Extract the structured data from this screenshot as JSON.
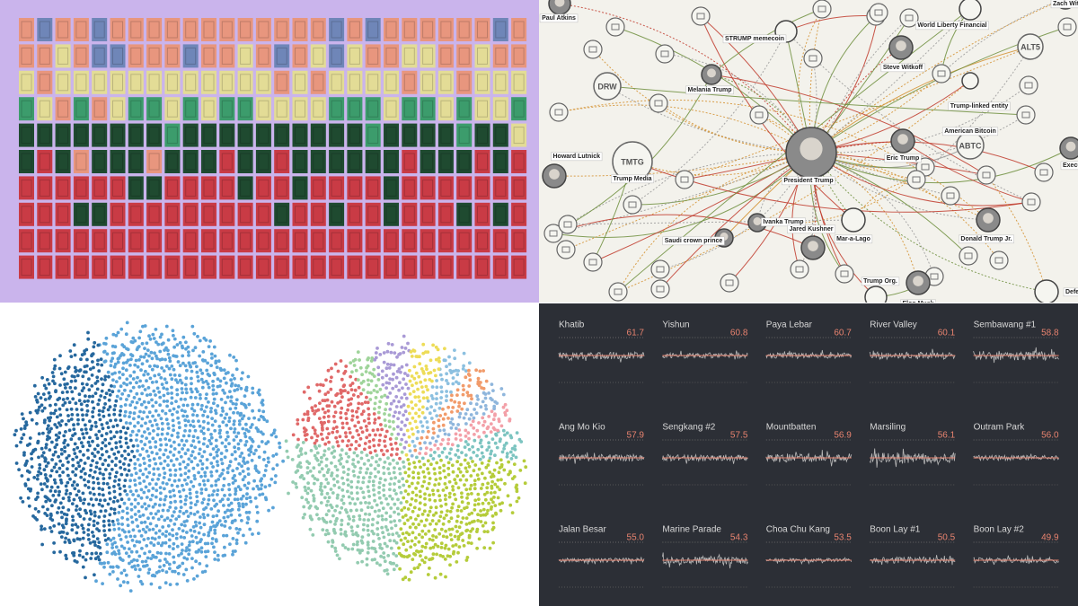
{
  "network": {
    "nodes": [
      {
        "label": "Paul Atkins"
      },
      {
        "label": "Zach Witkoff"
      },
      {
        "label": "STRUMP memecoin"
      },
      {
        "label": "World Liberty Financial"
      },
      {
        "label": "Steve Witkoff"
      },
      {
        "label": "ALT5"
      },
      {
        "label": "Melania Trump"
      },
      {
        "label": "DRW"
      },
      {
        "label": "Trump-linked entity"
      },
      {
        "label": "TMTG",
        "caption": "Trump Media"
      },
      {
        "label": "President Trump"
      },
      {
        "label": "ABTC",
        "caption": "American Bitcoin"
      },
      {
        "label": "Eric Trump"
      },
      {
        "label": "Howard Lutnick"
      },
      {
        "label": "Executi"
      },
      {
        "label": "Ivanka Trump"
      },
      {
        "label": "Jared Kushner"
      },
      {
        "label": "Saudi crown prince"
      },
      {
        "label": "Mar-a-Lago"
      },
      {
        "label": "Donald Trump Jr."
      },
      {
        "label": "Trump Org."
      },
      {
        "label": "Elon Musk"
      },
      {
        "label": "Defens"
      }
    ]
  },
  "sparklines": {
    "panels": [
      {
        "name": "Khatib",
        "value": "61.7"
      },
      {
        "name": "Yishun",
        "value": "60.8"
      },
      {
        "name": "Paya Lebar",
        "value": "60.7"
      },
      {
        "name": "River Valley",
        "value": "60.1"
      },
      {
        "name": "Sembawang #1",
        "value": "58.8"
      },
      {
        "name": "Ang Mo Kio",
        "value": "57.9"
      },
      {
        "name": "Sengkang #2",
        "value": "57.5"
      },
      {
        "name": "Mountbatten",
        "value": "56.9"
      },
      {
        "name": "Marsiling",
        "value": "56.1"
      },
      {
        "name": "Outram Park",
        "value": "56.0"
      },
      {
        "name": "Jalan Besar",
        "value": "55.0"
      },
      {
        "name": "Marine Parade",
        "value": "54.3"
      },
      {
        "name": "Choa Chu Kang",
        "value": "53.5"
      },
      {
        "name": "Boon Lay #1",
        "value": "50.5"
      },
      {
        "name": "Boon Lay #2",
        "value": "49.9"
      }
    ]
  }
}
